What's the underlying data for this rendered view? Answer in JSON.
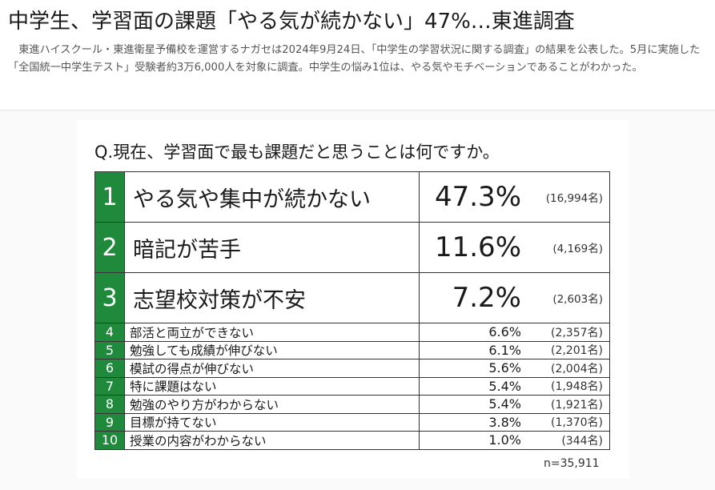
{
  "article": {
    "headline": "中学生、学習面の課題「やる気が続かない」47%…東進調査",
    "lead": "東進ハイスクール・東進衛星予備校を運営するナガセは2024年9月24日、「中学生の学習状況に関する調査」の結果を公表した。5月に実施した「全国統一中学生テスト」受験者約3万6,000人を対象に調査。中学生の悩み1位は、やる気やモチベーションであることがわかった。"
  },
  "figure": {
    "question": "Q.現在、学習面で最も課題だと思うことは何ですか。",
    "sample": "n=35,911",
    "accent_color": "#1f8a3c"
  },
  "chart_data": {
    "type": "table",
    "title": "Q.現在、学習面で最も課題だと思うことは何ですか。",
    "columns": [
      "rank",
      "item",
      "percent",
      "count"
    ],
    "rows": [
      {
        "rank": "1",
        "item": "やる気や集中が続かない",
        "percent": "47.3%",
        "count": "(16,994名)"
      },
      {
        "rank": "2",
        "item": "暗記が苦手",
        "percent": "11.6%",
        "count": "(4,169名)"
      },
      {
        "rank": "3",
        "item": "志望校対策が不安",
        "percent": "7.2%",
        "count": "(2,603名)"
      },
      {
        "rank": "4",
        "item": "部活と両立ができない",
        "percent": "6.6%",
        "count": "(2,357名)"
      },
      {
        "rank": "5",
        "item": "勉強しても成績が伸びない",
        "percent": "6.1%",
        "count": "(2,201名)"
      },
      {
        "rank": "6",
        "item": "模試の得点が伸びない",
        "percent": "5.6%",
        "count": "(2,004名)"
      },
      {
        "rank": "7",
        "item": "特に課題はない",
        "percent": "5.4%",
        "count": "(1,948名)"
      },
      {
        "rank": "8",
        "item": "勉強のやり方がわからない",
        "percent": "5.4%",
        "count": "(1,921名)"
      },
      {
        "rank": "9",
        "item": "目標が持てない",
        "percent": "3.8%",
        "count": "(1,370名)"
      },
      {
        "rank": "10",
        "item": "授業の内容がわからない",
        "percent": "1.0%",
        "count": "(344名)"
      }
    ],
    "values": [
      47.3,
      11.6,
      7.2,
      6.6,
      6.1,
      5.6,
      5.4,
      5.4,
      3.8,
      1.0
    ],
    "counts": [
      16994,
      4169,
      2603,
      2357,
      2201,
      2004,
      1948,
      1921,
      1370,
      344
    ]
  }
}
